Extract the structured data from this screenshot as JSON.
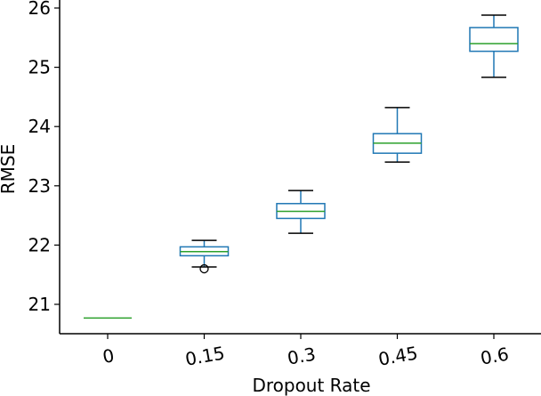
{
  "chart_data": {
    "type": "box",
    "title": "",
    "xlabel": "Dropout Rate",
    "ylabel": "RMSE",
    "ylim": [
      20.5,
      26.0
    ],
    "yticks": [
      "21",
      "22",
      "23",
      "24",
      "25",
      "26"
    ],
    "grid": false,
    "legend": "none",
    "categories": [
      "0",
      "0.15",
      "0.3",
      "0.45",
      "0.6"
    ],
    "boxes": [
      {
        "category": "0",
        "whisker_low": 20.77,
        "q1": 20.77,
        "median": 20.77,
        "q3": 20.77,
        "whisker_high": 20.77,
        "outliers": []
      },
      {
        "category": "0.15",
        "whisker_low": 21.63,
        "q1": 21.82,
        "median": 21.89,
        "q3": 21.97,
        "whisker_high": 22.08,
        "outliers": [
          21.6
        ]
      },
      {
        "category": "0.3",
        "whisker_low": 22.2,
        "q1": 22.45,
        "median": 22.57,
        "q3": 22.7,
        "whisker_high": 22.92,
        "outliers": []
      },
      {
        "category": "0.45",
        "whisker_low": 23.4,
        "q1": 23.55,
        "median": 23.72,
        "q3": 23.88,
        "whisker_high": 24.32,
        "outliers": []
      },
      {
        "category": "0.6",
        "whisker_low": 24.83,
        "q1": 25.27,
        "median": 25.4,
        "q3": 25.67,
        "whisker_high": 25.88,
        "outliers": []
      }
    ],
    "colors": {
      "box": "#1f77b4",
      "median": "#2ca02c",
      "whisker_cap": "#000000",
      "axis": "#000000"
    }
  }
}
